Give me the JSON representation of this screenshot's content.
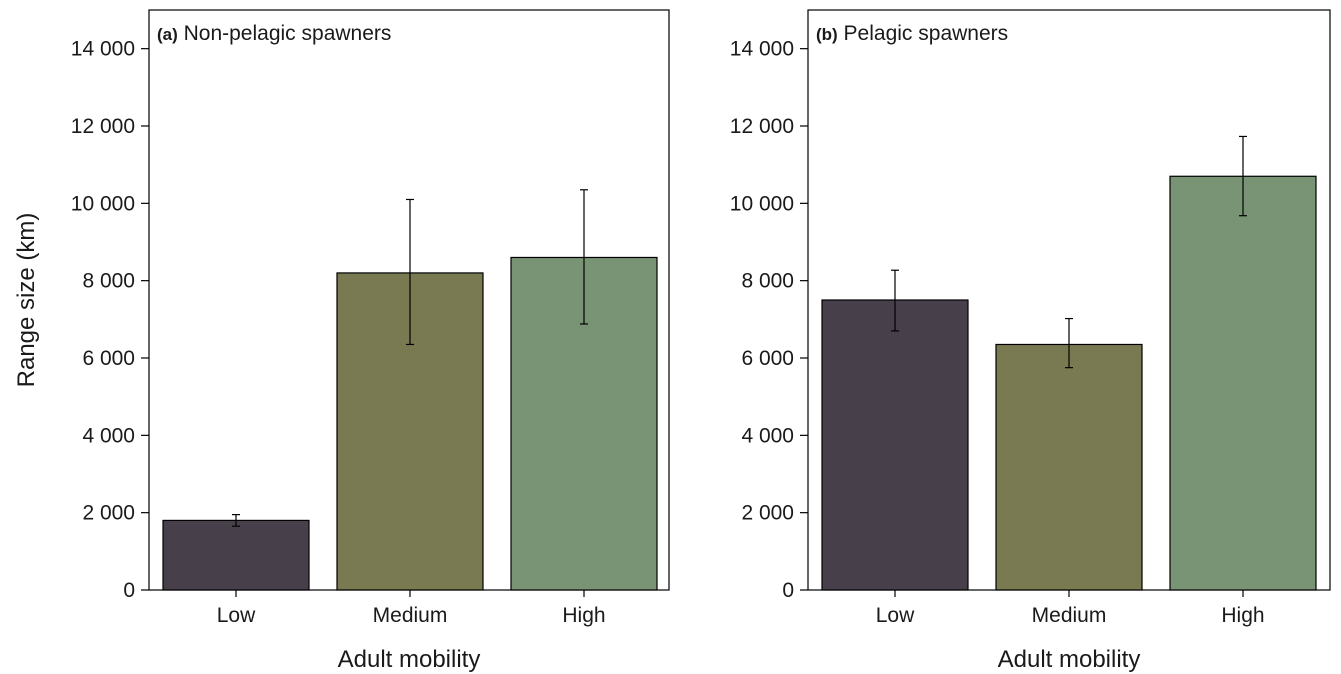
{
  "chart_data": [
    {
      "type": "bar",
      "panel_label": "(a)",
      "title": "Non-pelagic spawners",
      "categories": [
        "Low",
        "Medium",
        "High"
      ],
      "values": [
        1800,
        8200,
        8600
      ],
      "error_low": [
        1650,
        6350,
        6880
      ],
      "error_high": [
        1950,
        10100,
        10350
      ],
      "colors": [
        "#473f4a",
        "#7a7a52",
        "#789475"
      ],
      "xlabel": "Adult mobility",
      "ylabel": "Range size (km)",
      "ylim": [
        0,
        15000
      ],
      "yticks": [
        0,
        2000,
        4000,
        6000,
        8000,
        10000,
        12000,
        14000
      ],
      "ytick_labels": [
        "0",
        "2 000",
        "4 000",
        "6 000",
        "8 000",
        "10 000",
        "12 000",
        "14 000"
      ],
      "grid": false
    },
    {
      "type": "bar",
      "panel_label": "(b)",
      "title": "Pelagic spawners",
      "categories": [
        "Low",
        "Medium",
        "High"
      ],
      "values": [
        7500,
        6350,
        10700
      ],
      "error_low": [
        6700,
        5750,
        9680
      ],
      "error_high": [
        8270,
        7020,
        11730
      ],
      "colors": [
        "#473f4a",
        "#7a7a52",
        "#789475"
      ],
      "xlabel": "Adult mobility",
      "ylabel": "",
      "ylim": [
        0,
        15000
      ],
      "yticks": [
        0,
        2000,
        4000,
        6000,
        8000,
        10000,
        12000,
        14000
      ],
      "ytick_labels": [
        "0",
        "2 000",
        "4 000",
        "6 000",
        "8 000",
        "10 000",
        "12 000",
        "14 000"
      ],
      "grid": false
    }
  ]
}
